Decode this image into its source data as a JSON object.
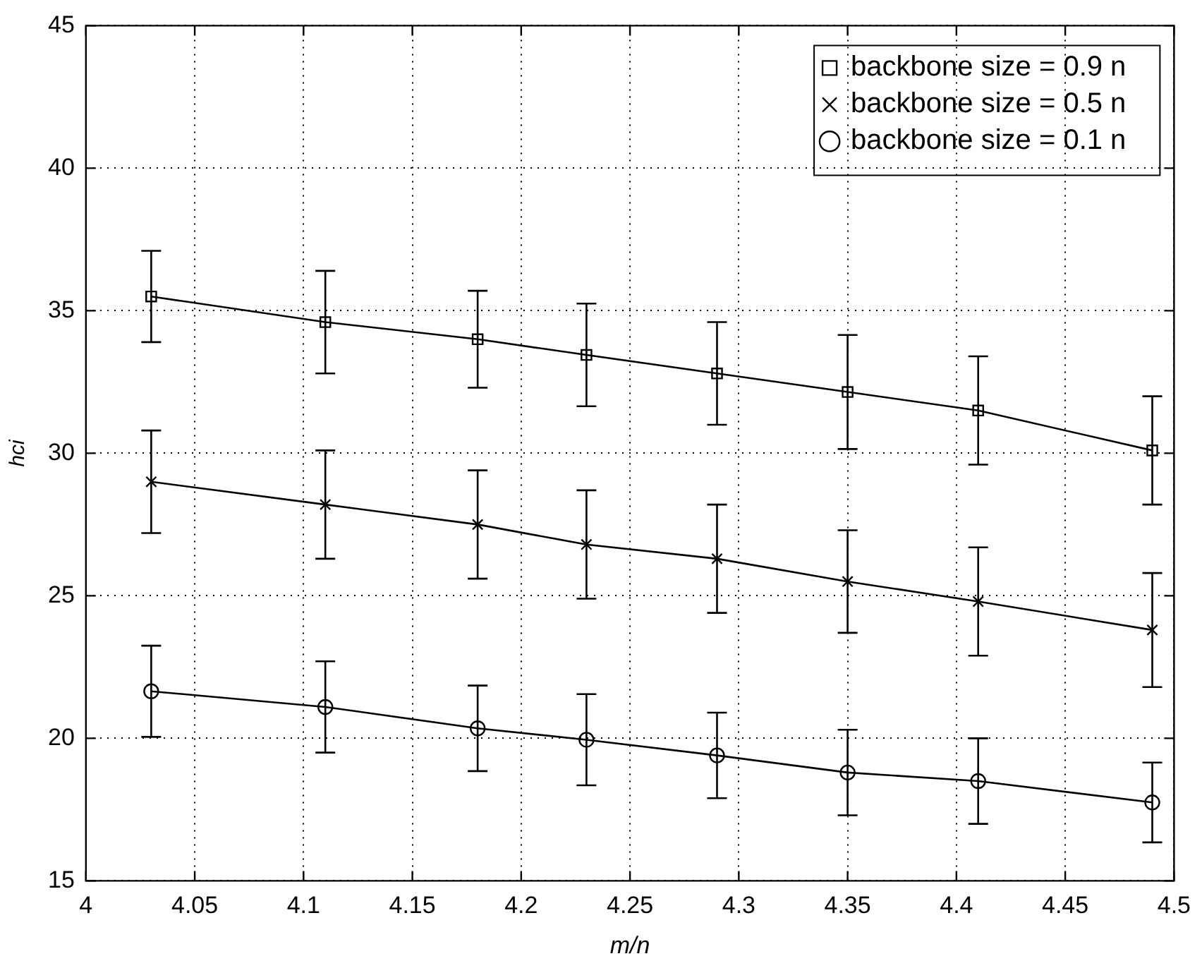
{
  "chart_data": {
    "type": "line",
    "xlabel": "m/n",
    "ylabel": "hci",
    "x": [
      4.03,
      4.11,
      4.18,
      4.23,
      4.29,
      4.35,
      4.41,
      4.49
    ],
    "series": [
      {
        "name": "backbone size = 0.9 n",
        "color": "#000000",
        "marker": "square",
        "values": [
          35.5,
          34.6,
          34.0,
          33.45,
          32.8,
          32.15,
          31.5,
          30.1
        ],
        "errors": [
          1.6,
          1.8,
          1.7,
          1.8,
          1.8,
          2.0,
          1.9,
          1.9
        ]
      },
      {
        "name": "backbone size = 0.5 n",
        "color": "#000000",
        "marker": "cross",
        "values": [
          29.0,
          28.2,
          27.5,
          26.8,
          26.3,
          25.5,
          24.8,
          23.8
        ],
        "errors": [
          1.8,
          1.9,
          1.9,
          1.9,
          1.9,
          1.8,
          1.9,
          2.0
        ]
      },
      {
        "name": "backbone size = 0.1 n",
        "color": "#000000",
        "marker": "circle",
        "values": [
          21.65,
          21.1,
          20.35,
          19.95,
          19.4,
          18.8,
          18.5,
          17.75
        ],
        "errors": [
          1.6,
          1.6,
          1.5,
          1.6,
          1.5,
          1.5,
          1.5,
          1.4
        ]
      }
    ],
    "xlim": [
      4,
      4.5
    ],
    "xticks": [
      4,
      4.05,
      4.1,
      4.15,
      4.2,
      4.25,
      4.3,
      4.35,
      4.4,
      4.45,
      4.5
    ],
    "ylim": [
      15,
      45
    ],
    "yticks": [
      15,
      20,
      25,
      30,
      35,
      40,
      45
    ],
    "grid": true,
    "legend": "top right",
    "line_style": "solid"
  }
}
